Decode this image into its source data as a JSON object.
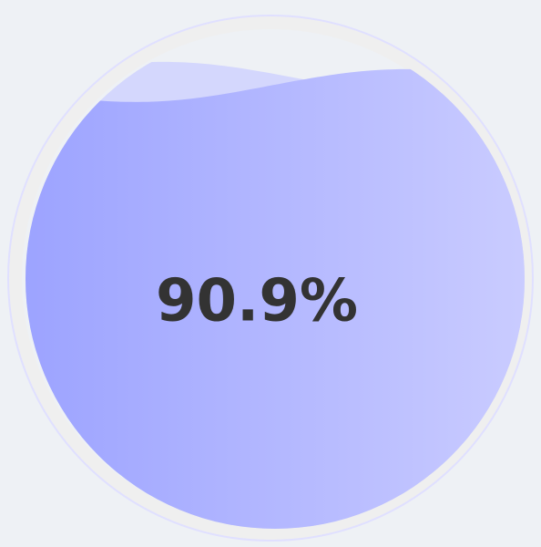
{
  "chart_data": {
    "type": "liquid",
    "values": [
      90.9
    ],
    "value_labels": [
      "90.9%"
    ],
    "ylim": [
      0,
      100
    ],
    "color": [
      "#9aa1ff",
      "#cbcdff"
    ]
  }
}
